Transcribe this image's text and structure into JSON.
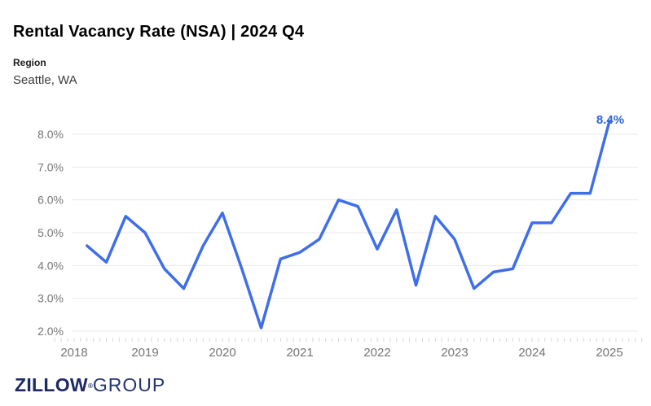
{
  "header": {
    "title": "Rental Vacancy Rate (NSA) | 2024 Q4",
    "region_label": "Region",
    "region_value": "Seattle, WA"
  },
  "footer": {
    "logo_primary": "ZILLOW",
    "logo_registered": "®",
    "logo_secondary": "GROUP"
  },
  "chart_data": {
    "type": "line",
    "title": "Rental Vacancy Rate (NSA) | 2024 Q4",
    "series_name": "Seattle, WA",
    "x": [
      "2018 Q1",
      "2018 Q2",
      "2018 Q3",
      "2018 Q4",
      "2019 Q1",
      "2019 Q2",
      "2019 Q3",
      "2019 Q4",
      "2020 Q1",
      "2020 Q2",
      "2020 Q3",
      "2020 Q4",
      "2021 Q1",
      "2021 Q2",
      "2021 Q3",
      "2021 Q4",
      "2022 Q1",
      "2022 Q2",
      "2022 Q3",
      "2022 Q4",
      "2023 Q1",
      "2023 Q2",
      "2023 Q3",
      "2023 Q4",
      "2024 Q1",
      "2024 Q2",
      "2024 Q3",
      "2024 Q4"
    ],
    "values": [
      4.6,
      4.1,
      5.5,
      5.0,
      3.9,
      3.3,
      4.6,
      5.6,
      3.9,
      2.1,
      4.2,
      4.4,
      4.8,
      6.0,
      5.8,
      4.5,
      5.7,
      3.4,
      5.5,
      4.8,
      3.3,
      3.8,
      3.9,
      5.3,
      5.3,
      6.2,
      6.2,
      8.4
    ],
    "end_label": "8.4%",
    "y_tick_values": [
      8.0,
      7.0,
      6.0,
      5.0,
      4.0,
      3.0,
      2.0
    ],
    "y_tick_labels": [
      "8.0%",
      "7.0%",
      "6.0%",
      "5.0%",
      "4.0%",
      "3.0%",
      "2.0%"
    ],
    "x_tick_labels": [
      "2018",
      "2019",
      "2020",
      "2021",
      "2022",
      "2023",
      "2024",
      "2025"
    ],
    "ylim": [
      2.0,
      8.5
    ],
    "grid": true,
    "legend": "none",
    "line_color": "#3e6eea",
    "end_label_color": "#2f63e0",
    "axis_text_color": "#757575",
    "grid_color": "#eaeaea",
    "minor_tick_color": "#d8d8d8"
  }
}
